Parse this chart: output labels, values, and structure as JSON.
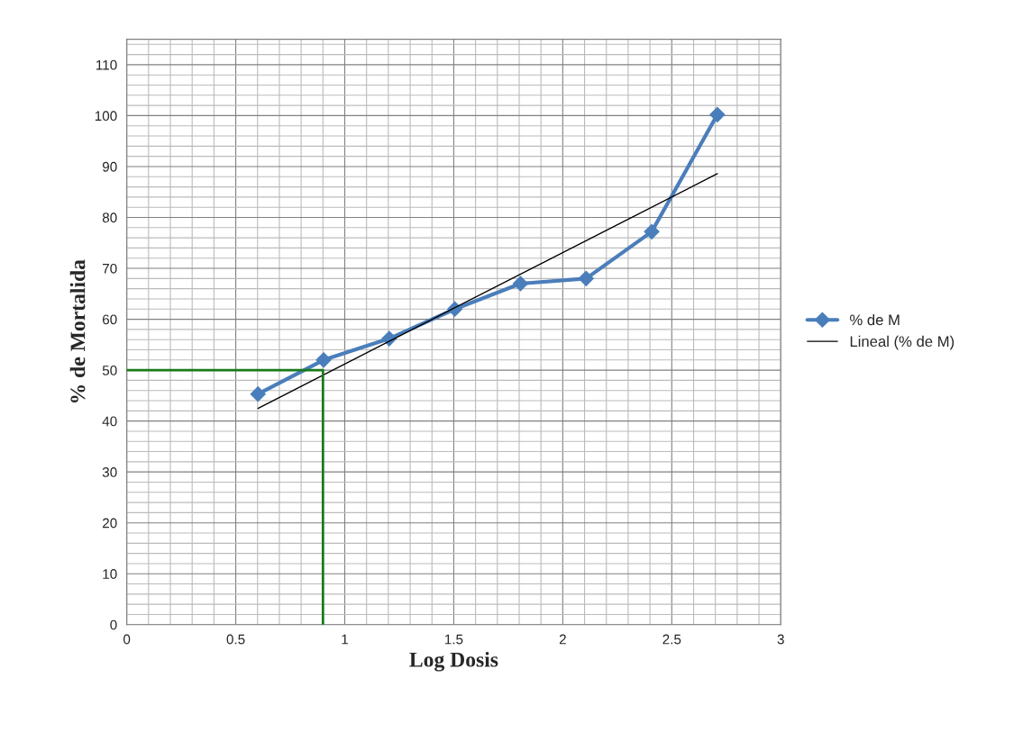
{
  "chart_data": {
    "type": "line",
    "xlabel": "Log Dosis",
    "ylabel": "% de Mortalida",
    "series": [
      {
        "name": "% de M",
        "color": "#4a7ebb",
        "x": [
          0.602,
          0.903,
          1.204,
          1.505,
          1.806,
          2.107,
          2.408,
          2.709
        ],
        "values": [
          45.3,
          52,
          56.2,
          62,
          67,
          68,
          77.2,
          100.2
        ],
        "marker": "diamond",
        "line_style": "solid"
      },
      {
        "name": "Lineal (% de M)",
        "color": "#000000",
        "x": [
          0.602,
          2.709
        ],
        "values": [
          42.5,
          88.6
        ],
        "marker": "none",
        "line_style": "solid"
      },
      {
        "color": "#1a7a1a",
        "x": [
          0,
          0.9,
          0.9
        ],
        "values": [
          50,
          50,
          0
        ],
        "marker": "none",
        "line_style": "solid"
      }
    ],
    "xlim": [
      0,
      3
    ],
    "ylim": [
      0,
      115
    ],
    "xticks": [
      0,
      {
        "value": 0.1,
        "label": null
      },
      {
        "value": 0.2,
        "label": null
      },
      {
        "value": 0.3,
        "label": null
      },
      {
        "value": 0.4,
        "label": null
      },
      0.5,
      {
        "value": 0.6,
        "label": null
      },
      {
        "value": 0.7,
        "label": null
      },
      {
        "value": 0.8,
        "label": null
      },
      {
        "value": 0.9,
        "label": null
      },
      1,
      {
        "value": 1.1,
        "label": null
      },
      {
        "value": 1.2,
        "label": null
      },
      {
        "value": 1.3,
        "label": null
      },
      {
        "value": 1.4,
        "label": null
      },
      1.5,
      {
        "value": 1.6,
        "label": null
      },
      {
        "value": 1.7,
        "label": null
      },
      {
        "value": 1.8,
        "label": null
      },
      {
        "value": 1.9,
        "label": null
      },
      2,
      {
        "value": 2.1,
        "label": null
      },
      {
        "value": 2.2,
        "label": null
      },
      {
        "value": 2.3,
        "label": null
      },
      {
        "value": 2.4,
        "label": null
      },
      2.5,
      {
        "value": 2.6,
        "label": null
      },
      {
        "value": 2.7,
        "label": null
      },
      {
        "value": 2.8,
        "label": null
      },
      {
        "value": 2.9,
        "label": null
      },
      3
    ],
    "yticks": [
      0,
      {
        "value": 2,
        "label": null
      },
      {
        "value": 4,
        "label": null
      },
      {
        "value": 6,
        "label": null
      },
      {
        "value": 8,
        "label": null
      },
      10,
      {
        "value": 12,
        "label": null
      },
      {
        "value": 14,
        "label": null
      },
      {
        "value": 16,
        "label": null
      },
      {
        "value": 18,
        "label": null
      },
      20,
      {
        "value": 22,
        "label": null
      },
      {
        "value": 24,
        "label": null
      },
      {
        "value": 26,
        "label": null
      },
      {
        "value": 28,
        "label": null
      },
      30,
      {
        "value": 32,
        "label": null
      },
      {
        "value": 34,
        "label": null
      },
      {
        "value": 36,
        "label": null
      },
      {
        "value": 38,
        "label": null
      },
      40,
      {
        "value": 42,
        "label": null
      },
      {
        "value": 44,
        "label": null
      },
      {
        "value": 46,
        "label": null
      },
      {
        "value": 48,
        "label": null
      },
      50,
      {
        "value": 52,
        "label": null
      },
      {
        "value": 54,
        "label": null
      },
      {
        "value": 56,
        "label": null
      },
      {
        "value": 58,
        "label": null
      },
      60,
      {
        "value": 62,
        "label": null
      },
      {
        "value": 64,
        "label": null
      },
      {
        "value": 66,
        "label": null
      },
      {
        "value": 68,
        "label": null
      },
      70,
      {
        "value": 72,
        "label": null
      },
      {
        "value": 74,
        "label": null
      },
      {
        "value": 76,
        "label": null
      },
      {
        "value": 78,
        "label": null
      },
      80,
      {
        "value": 82,
        "label": null
      },
      {
        "value": 84,
        "label": null
      },
      {
        "value": 86,
        "label": null
      },
      {
        "value": 88,
        "label": null
      },
      90,
      {
        "value": 92,
        "label": null
      },
      {
        "value": 94,
        "label": null
      },
      {
        "value": 96,
        "label": null
      },
      {
        "value": 98,
        "label": null
      },
      100,
      {
        "value": 102,
        "label": null
      },
      {
        "value": 104,
        "label": null
      },
      {
        "value": 106,
        "label": null
      },
      {
        "value": 108,
        "label": null
      },
      110,
      {
        "value": 112,
        "label": null
      },
      {
        "value": 114,
        "label": null
      }
    ],
    "grid": true,
    "legend": "right"
  }
}
